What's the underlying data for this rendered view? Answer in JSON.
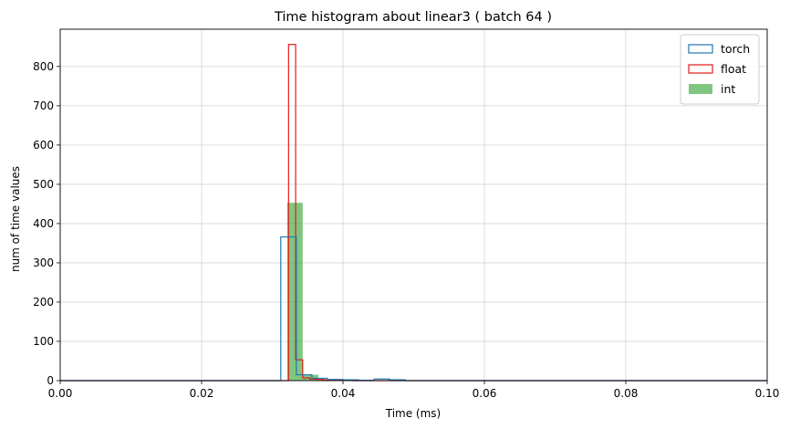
{
  "chart_data": {
    "type": "histogram",
    "title": "Time histogram about linear3 ( batch 64 )",
    "xlabel": "Time (ms)",
    "ylabel": "num of time values",
    "xlim": [
      0.0,
      0.1
    ],
    "ylim": [
      0,
      895
    ],
    "xticks": [
      "0.00",
      "0.02",
      "0.04",
      "0.06",
      "0.08",
      "0.10"
    ],
    "yticks": [
      "0",
      "100",
      "200",
      "300",
      "400",
      "500",
      "600",
      "700",
      "800"
    ],
    "grid": true,
    "legend_position": "top-right",
    "series": [
      {
        "name": "torch",
        "style": "step",
        "color": "#1f77b4",
        "edges": [
          0.0,
          0.0312,
          0.0334,
          0.0356,
          0.0378,
          0.04,
          0.0422,
          0.0444,
          0.0466,
          0.0488,
          0.1
        ],
        "counts": [
          0,
          366,
          15,
          6,
          3,
          2,
          1,
          4,
          2,
          0
        ]
      },
      {
        "name": "float",
        "style": "step",
        "color": "#e31a1c",
        "edges": [
          0.0,
          0.0323,
          0.0333,
          0.0343,
          0.0353,
          0.0363,
          0.0373,
          0.0383,
          0.0393,
          0.0403,
          0.0413,
          0.1
        ],
        "counts": [
          0,
          856,
          53,
          7,
          4,
          3,
          2,
          1,
          1,
          1,
          0
        ]
      },
      {
        "name": "int",
        "style": "filled",
        "color": "#2ca02c",
        "edges": [
          0.0321,
          0.0343,
          0.0365,
          0.0387
        ],
        "counts": [
          453,
          15,
          3
        ]
      }
    ]
  }
}
